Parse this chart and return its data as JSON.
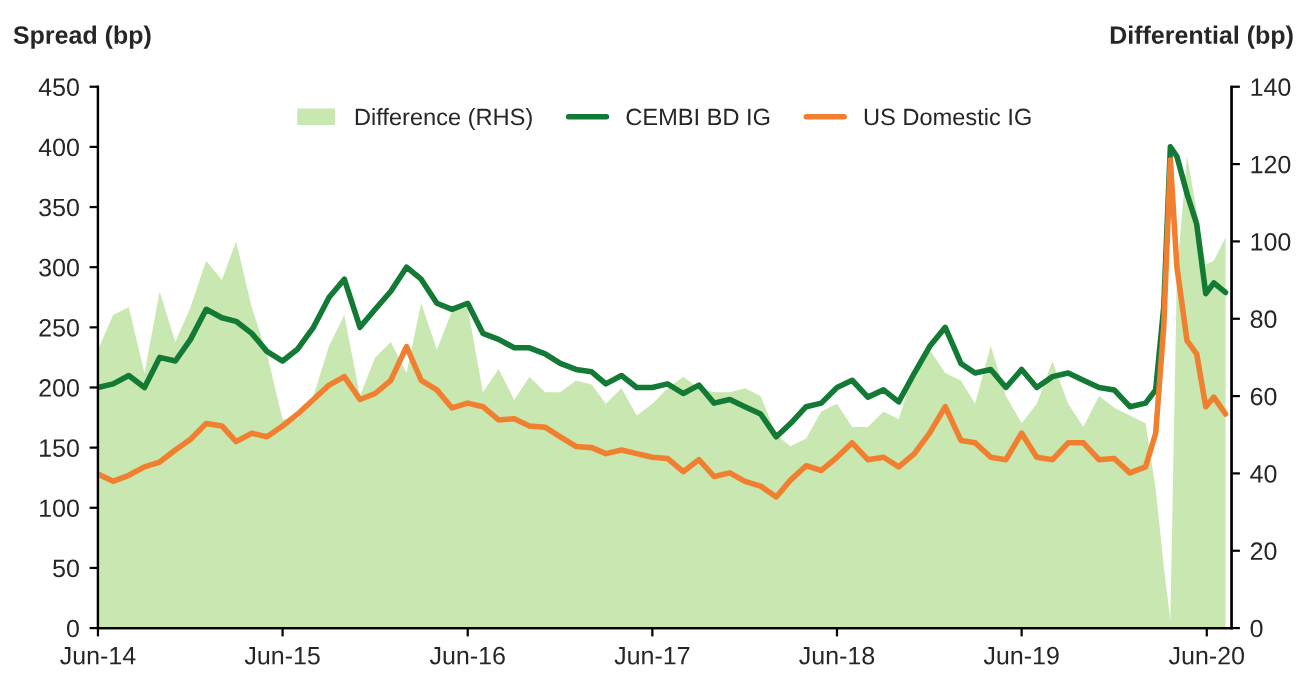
{
  "chart_data": {
    "type": "line",
    "ylabel": "Spread (bp)",
    "y2label": "Differential (bp)",
    "x": [
      "2014-06-01",
      "2014-07-01",
      "2014-08-01",
      "2014-09-01",
      "2014-10-01",
      "2014-11-01",
      "2014-12-01",
      "2015-01-01",
      "2015-02-01",
      "2015-03-01",
      "2015-04-01",
      "2015-05-01",
      "2015-06-01",
      "2015-07-01",
      "2015-08-01",
      "2015-09-01",
      "2015-10-01",
      "2015-11-01",
      "2015-12-01",
      "2016-01-01",
      "2016-02-01",
      "2016-03-01",
      "2016-04-01",
      "2016-05-01",
      "2016-06-01",
      "2016-07-01",
      "2016-08-01",
      "2016-09-01",
      "2016-10-01",
      "2016-11-01",
      "2016-12-01",
      "2017-01-01",
      "2017-02-01",
      "2017-03-01",
      "2017-04-01",
      "2017-05-01",
      "2017-06-01",
      "2017-07-01",
      "2017-08-01",
      "2017-09-01",
      "2017-10-01",
      "2017-11-01",
      "2017-12-01",
      "2018-01-01",
      "2018-02-01",
      "2018-03-01",
      "2018-04-01",
      "2018-05-01",
      "2018-06-01",
      "2018-07-01",
      "2018-08-01",
      "2018-09-01",
      "2018-10-01",
      "2018-11-01",
      "2018-12-01",
      "2019-01-01",
      "2019-02-01",
      "2019-03-01",
      "2019-04-01",
      "2019-05-01",
      "2019-06-01",
      "2019-07-01",
      "2019-08-01",
      "2019-09-01",
      "2019-10-01",
      "2019-11-01",
      "2019-12-01",
      "2020-01-01",
      "2020-02-01",
      "2020-02-21",
      "2020-03-08",
      "2020-03-21",
      "2020-04-03",
      "2020-04-23",
      "2020-05-12",
      "2020-05-30",
      "2020-06-15",
      "2020-07-08"
    ],
    "series": [
      {
        "name": "Difference (RHS)",
        "type": "area",
        "axis": "y2",
        "color": "#c9e7b0",
        "values": [
          72,
          81,
          83,
          66,
          87,
          74,
          83,
          95,
          90,
          100,
          83,
          71,
          54,
          54,
          60,
          73,
          81,
          60,
          70,
          74,
          66,
          84,
          72,
          82,
          83,
          61,
          67,
          59,
          65,
          61,
          61,
          64,
          63,
          58,
          62,
          55,
          58,
          62,
          65,
          62,
          61,
          61,
          62,
          60,
          50,
          47,
          49,
          56,
          58,
          52,
          52,
          56,
          54,
          67,
          72,
          66,
          64,
          58,
          73,
          60,
          53,
          58,
          69,
          58,
          52,
          60,
          57,
          55,
          53,
          36,
          16,
          2,
          92,
          122,
          108,
          94,
          95,
          101
        ]
      },
      {
        "name": "CEMBI BD IG",
        "color": "#137a36",
        "values": [
          200,
          203,
          210,
          200,
          225,
          222,
          240,
          265,
          258,
          255,
          245,
          230,
          222,
          232,
          250,
          275,
          290,
          250,
          265,
          280,
          300,
          290,
          270,
          265,
          270,
          245,
          240,
          233,
          233,
          228,
          220,
          215,
          213,
          203,
          210,
          200,
          200,
          203,
          195,
          202,
          187,
          190,
          184,
          178,
          159,
          170,
          184,
          187,
          200,
          206,
          192,
          198,
          188,
          212,
          234,
          250,
          220,
          212,
          215,
          200,
          215,
          200,
          209,
          212,
          206,
          200,
          198,
          184,
          187,
          198,
          267,
          400,
          392,
          361,
          336,
          278,
          287,
          279
        ]
      },
      {
        "name": "US Domestic IG",
        "color": "#f07f2f",
        "values": [
          128,
          122,
          127,
          134,
          138,
          148,
          157,
          170,
          168,
          155,
          162,
          159,
          168,
          178,
          190,
          202,
          209,
          190,
          195,
          206,
          234,
          206,
          198,
          183,
          187,
          184,
          173,
          174,
          168,
          167,
          159,
          151,
          150,
          145,
          148,
          145,
          142,
          141,
          130,
          140,
          126,
          129,
          122,
          118,
          109,
          123,
          135,
          131,
          142,
          154,
          140,
          142,
          134,
          145,
          162,
          184,
          156,
          154,
          142,
          140,
          162,
          142,
          140,
          154,
          154,
          140,
          141,
          129,
          134,
          162,
          251,
          389,
          300,
          239,
          228,
          184,
          192,
          178
        ]
      }
    ],
    "xlim": [
      "2014-06-01",
      "2020-07-20"
    ],
    "xticks": [
      {
        "value": "2014-06-01",
        "label": "Jun-14"
      },
      {
        "value": "2015-06-01",
        "label": "Jun-15"
      },
      {
        "value": "2016-06-01",
        "label": "Jun-16"
      },
      {
        "value": "2017-06-01",
        "label": "Jun-17"
      },
      {
        "value": "2018-06-01",
        "label": "Jun-18"
      },
      {
        "value": "2019-06-01",
        "label": "Jun-19"
      },
      {
        "value": "2020-06-01",
        "label": "Jun-20"
      }
    ],
    "ylim": [
      0,
      450
    ],
    "yticks": [
      0,
      50,
      100,
      150,
      200,
      250,
      300,
      350,
      400,
      450
    ],
    "y2lim": [
      0,
      140
    ],
    "y2ticks": [
      0,
      20,
      40,
      60,
      80,
      100,
      120,
      140
    ],
    "legend": "top",
    "grid": false,
    "marker": "none",
    "line_style": "solid"
  }
}
